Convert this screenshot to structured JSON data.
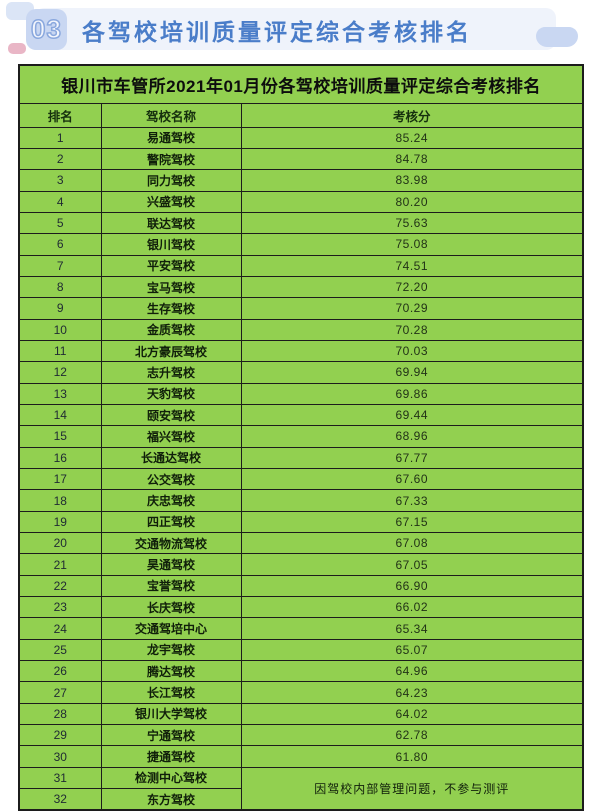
{
  "header": {
    "badge": "03",
    "title": "各驾校培训质量评定综合考核排名"
  },
  "table": {
    "title": "银川市车管所2021年01月份各驾校培训质量评定综合考核排名",
    "columns": [
      "排名",
      "驾校名称",
      "考核分"
    ],
    "rows": [
      {
        "rank": "1",
        "school": "易通驾校",
        "score": "85.24"
      },
      {
        "rank": "2",
        "school": "警院驾校",
        "score": "84.78"
      },
      {
        "rank": "3",
        "school": "同力驾校",
        "score": "83.98"
      },
      {
        "rank": "4",
        "school": "兴盛驾校",
        "score": "80.20"
      },
      {
        "rank": "5",
        "school": "联达驾校",
        "score": "75.63"
      },
      {
        "rank": "6",
        "school": "银川驾校",
        "score": "75.08"
      },
      {
        "rank": "7",
        "school": "平安驾校",
        "score": "74.51"
      },
      {
        "rank": "8",
        "school": "宝马驾校",
        "score": "72.20"
      },
      {
        "rank": "9",
        "school": "生存驾校",
        "score": "70.29"
      },
      {
        "rank": "10",
        "school": "金质驾校",
        "score": "70.28"
      },
      {
        "rank": "11",
        "school": "北方豪辰驾校",
        "score": "70.03"
      },
      {
        "rank": "12",
        "school": "志升驾校",
        "score": "69.94"
      },
      {
        "rank": "13",
        "school": "天豹驾校",
        "score": "69.86"
      },
      {
        "rank": "14",
        "school": "颐安驾校",
        "score": "69.44"
      },
      {
        "rank": "15",
        "school": "福兴驾校",
        "score": "68.96"
      },
      {
        "rank": "16",
        "school": "长通达驾校",
        "score": "67.77"
      },
      {
        "rank": "17",
        "school": "公交驾校",
        "score": "67.60"
      },
      {
        "rank": "18",
        "school": "庆忠驾校",
        "score": "67.33"
      },
      {
        "rank": "19",
        "school": "四正驾校",
        "score": "67.15"
      },
      {
        "rank": "20",
        "school": "交通物流驾校",
        "score": "67.08"
      },
      {
        "rank": "21",
        "school": "昊通驾校",
        "score": "67.05"
      },
      {
        "rank": "22",
        "school": "宝誉驾校",
        "score": "66.90"
      },
      {
        "rank": "23",
        "school": "长庆驾校",
        "score": "66.02"
      },
      {
        "rank": "24",
        "school": "交通驾培中心",
        "score": "65.34"
      },
      {
        "rank": "25",
        "school": "龙宇驾校",
        "score": "65.07"
      },
      {
        "rank": "26",
        "school": "腾达驾校",
        "score": "64.96"
      },
      {
        "rank": "27",
        "school": "长江驾校",
        "score": "64.23"
      },
      {
        "rank": "28",
        "school": "银川大学驾校",
        "score": "64.02"
      },
      {
        "rank": "29",
        "school": "宁通驾校",
        "score": "62.78"
      },
      {
        "rank": "30",
        "school": "捷通驾校",
        "score": "61.80"
      }
    ],
    "unscored": {
      "rows": [
        {
          "rank": "31",
          "school": "检测中心驾校"
        },
        {
          "rank": "32",
          "school": "东方驾校"
        }
      ],
      "note": "因驾校内部管理问题，不参与测评"
    }
  },
  "colors": {
    "table_green": "#92d050",
    "title_blue": "#4a7dc9",
    "badge_fill": "#c9d7f2",
    "band_fill": "#eff3fb",
    "deco_pink": "#e9b6c6",
    "border_dark": "#1c1c1c"
  }
}
